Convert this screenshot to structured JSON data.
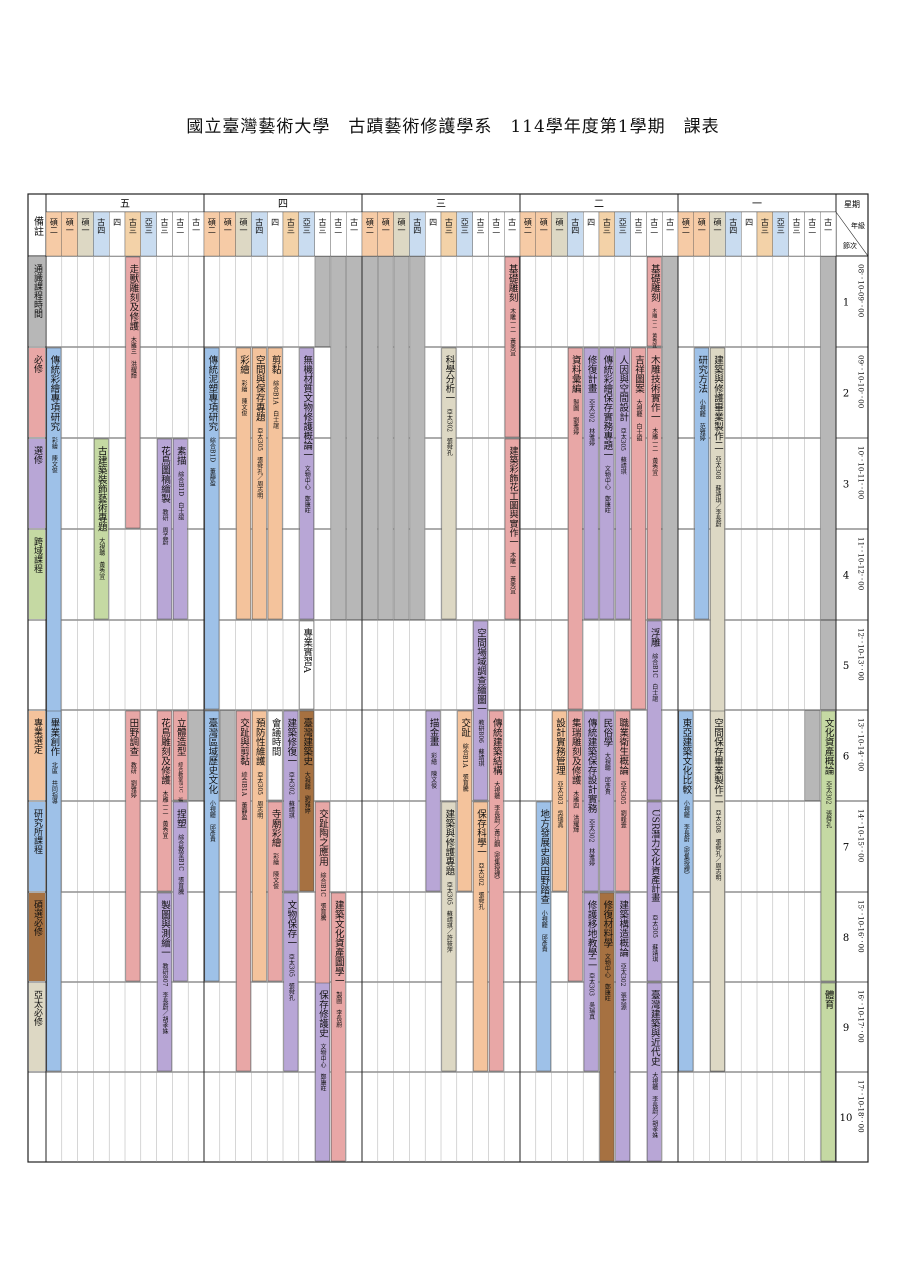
{
  "title": "國立臺灣藝術大學　古蹟藝術修護學系　114學年度第1學期　課表",
  "labels": {
    "note_header": "備註",
    "weekday_header": "星期",
    "grade_header": "年級",
    "period_header": "節次"
  },
  "days": [
    "五",
    "四",
    "三",
    "二",
    "一"
  ],
  "columns": [
    "碩二",
    "碩一",
    "碩一",
    "古四",
    "四",
    "古三",
    "亞三",
    "古三",
    "古二",
    "古一"
  ],
  "periods": [
    {
      "n": "1",
      "time": "08：10-09：00"
    },
    {
      "n": "2",
      "time": "09：10-10：00"
    },
    {
      "n": "3",
      "time": "10：10-11：00"
    },
    {
      "n": "4",
      "time": "11：10-12：00"
    },
    {
      "n": "5",
      "time": "12：10-13：00"
    },
    {
      "n": "6",
      "time": "13：10-14：00"
    },
    {
      "n": "7",
      "time": "14：10-15：00"
    },
    {
      "n": "8",
      "time": "15：10-16：00"
    },
    {
      "n": "9",
      "time": "16：10-17：00"
    },
    {
      "n": "10",
      "time": "17：10-18：00"
    }
  ],
  "legend": [
    {
      "label": "通識課程時間",
      "color": "#b7b7b7"
    },
    {
      "label": "必修",
      "color": "#e8a7a6"
    },
    {
      "label": "選修",
      "color": "#b8a6d6"
    },
    {
      "label": "跨域課程",
      "color": "#c5d9a3"
    },
    {
      "label": "專業選定",
      "color": "#f4c39c"
    },
    {
      "label": "研究所課程",
      "color": "#9ec1e8"
    },
    {
      "label": "碩選必修",
      "color": "#a67141"
    },
    {
      "label": "亞太必修",
      "color": "#ddd8c4"
    }
  ],
  "colors": {
    "gray": "#b7b7b7",
    "pink": "#e8a7a6",
    "purple": "#b8a6d6",
    "green": "#c5d9a3",
    "peach": "#f4c39c",
    "blue": "#9ec1e8",
    "brown": "#a67141",
    "beige": "#ddd8c4",
    "master": "#f6cba6",
    "g4": "#c9dcf0",
    "plain": "#ffffff"
  },
  "courses": [
    {
      "d": 0,
      "c": 0,
      "p": 2,
      "s": 6,
      "color": "blue",
      "title": "傳統彩繪專項研究",
      "info": "彩繪　陳文俊"
    },
    {
      "d": 0,
      "c": 0,
      "p": 6,
      "s": 4,
      "color": "blue",
      "title": "畢業創作",
      "info": "北區　共同指導"
    },
    {
      "d": 0,
      "c": 3,
      "p": 3,
      "s": 2,
      "color": "green",
      "title": "古建築裝飾藝術專題",
      "info": "大視聽　黃秀宜"
    },
    {
      "d": 0,
      "c": 5,
      "p": 1,
      "s": 3,
      "color": "pink",
      "title": "走獸雕刻及修護",
      "info": "木雕三　洪耀輝"
    },
    {
      "d": 0,
      "c": 5,
      "p": 6,
      "s": 3,
      "color": "pink",
      "title": "田野調查",
      "info": "教研　劉雅婷"
    },
    {
      "d": 0,
      "c": 7,
      "p": 3,
      "s": 2,
      "color": "purple",
      "title": "花鳥圖稿繪製",
      "info": "教研　周孟蔚"
    },
    {
      "d": 0,
      "c": 7,
      "p": 6,
      "s": 2,
      "color": "pink",
      "title": "花鳥雕刻及修護",
      "info": "木雕一二　黃秀宜"
    },
    {
      "d": 0,
      "c": 7,
      "p": 8,
      "s": 2,
      "color": "purple",
      "title": "製圖與測繪一",
      "info": "教研807　李長蔚／胡孝姝"
    },
    {
      "d": 0,
      "c": 8,
      "p": 3,
      "s": 2,
      "color": "purple",
      "title": "素描",
      "info": "綜合B1D　白士誼"
    },
    {
      "d": 0,
      "c": 8,
      "p": 6,
      "s": 1,
      "color": "pink",
      "title": "立體造型",
      "info": "綜合教室B1C　張育騰"
    },
    {
      "d": 0,
      "c": 8,
      "p": 7,
      "s": 2,
      "color": "purple",
      "title": "捏塑",
      "info": "綜合教室B1C　張育騰"
    },
    {
      "d": 1,
      "c": 0,
      "p": 2,
      "s": 4,
      "color": "blue",
      "title": "傳統泥塑專項研究",
      "info": "綜合B1D　董靜盈"
    },
    {
      "d": 1,
      "c": 0,
      "p": 6,
      "s": 3,
      "color": "blue",
      "title": "臺灣區域歷史文化",
      "info": "小視聽　邱彥貴"
    },
    {
      "d": 1,
      "c": 2,
      "p": 2,
      "s": 3,
      "color": "peach",
      "title": "彩繪",
      "info": "彩繪　陳文俊"
    },
    {
      "d": 1,
      "c": 2,
      "p": 6,
      "s": 4,
      "color": "pink",
      "title": "交趾與剪黏",
      "info": "綜合B1A　董靜盈"
    },
    {
      "d": 1,
      "c": 3,
      "p": 2,
      "s": 3,
      "color": "peach",
      "title": "空間與保存專題",
      "info": "亞太305　張舜孔／周志明"
    },
    {
      "d": 1,
      "c": 3,
      "p": 6,
      "s": 3,
      "color": "peach",
      "title": "預防性維護",
      "info": "亞太305　周志明"
    },
    {
      "d": 1,
      "c": 4,
      "p": 2,
      "s": 3,
      "color": "peach",
      "title": "剪黏",
      "info": "綜合B1A　白士誼"
    },
    {
      "d": 1,
      "c": 4,
      "p": 6,
      "s": 1,
      "color": "plain",
      "title": "會議時間",
      "info": ""
    },
    {
      "d": 1,
      "c": 4,
      "p": 7,
      "s": 2,
      "color": "pink",
      "title": "寺廟彩繪",
      "info": "彩繪　陳文俊"
    },
    {
      "d": 1,
      "c": 5,
      "p": 6,
      "s": 2,
      "color": "purple",
      "title": "建築修復一",
      "info": "亞太302　蘇靖琪"
    },
    {
      "d": 1,
      "c": 5,
      "p": 8,
      "s": 2,
      "color": "purple",
      "title": "文物保存一",
      "info": "亞太305　張舜孔"
    },
    {
      "d": 1,
      "c": 6,
      "p": 2,
      "s": 3,
      "color": "purple",
      "title": "無機材質文物修護概論一",
      "info": "文物中心　鄭康旺"
    },
    {
      "d": 1,
      "c": 6,
      "p": 5,
      "s": 1,
      "color": "plain",
      "title": "專業實習A",
      "info": ""
    },
    {
      "d": 1,
      "c": 6,
      "p": 6,
      "s": 2,
      "color": "brown",
      "title": "臺灣建築史",
      "info": "大視聽　劉雅婷"
    },
    {
      "d": 1,
      "c": 7,
      "p": 7,
      "s": 3,
      "color": "pink",
      "title": "交趾陶之應用",
      "info": "綜合B1C　張育騰"
    },
    {
      "d": 1,
      "c": 7,
      "p": 9,
      "s": 2,
      "color": "purple",
      "title": "保存修護史",
      "info": "文物中心　鄭康旺"
    },
    {
      "d": 1,
      "c": 8,
      "p": 8,
      "s": 3,
      "color": "pink",
      "title": "建築文化資產圖學一",
      "info": "製圖　李長蔚"
    },
    {
      "d": 2,
      "c": 4,
      "p": 6,
      "s": 2,
      "color": "purple",
      "title": "描金畫",
      "info": "彩繪　陳文俊"
    },
    {
      "d": 2,
      "c": 5,
      "p": 7,
      "s": 3,
      "color": "beige",
      "title": "建築與修護專題",
      "info": "亞太305　蘇靖琪／許筱萍"
    },
    {
      "d": 2,
      "c": 5,
      "p": 2,
      "s": 3,
      "color": "beige",
      "title": "科學分析一",
      "info": "亞太302　張舜孔"
    },
    {
      "d": 2,
      "c": 6,
      "p": 6,
      "s": 2,
      "color": "peach",
      "title": "交趾",
      "info": "綜合B1A　張育騰"
    },
    {
      "d": 2,
      "c": 7,
      "p": 5,
      "s": 2,
      "color": "purple",
      "title": "空間場域調查繪圖一",
      "info": "教研806　蘇靖琪"
    },
    {
      "d": 2,
      "c": 7,
      "p": 7,
      "s": 3,
      "color": "peach",
      "title": "保存科學一",
      "info": "亞太302　張舜孔"
    },
    {
      "d": 2,
      "c": 8,
      "p": 6,
      "s": 4,
      "color": "pink",
      "title": "傳統建築結構",
      "info": "大視聽　李長蔚／黃江麒（密集授課）"
    },
    {
      "d": 2,
      "c": 9,
      "p": 1,
      "s": 2,
      "color": "pink",
      "title": "基礎雕刻",
      "info": "木雕一二　黃秀宜"
    },
    {
      "d": 2,
      "c": 9,
      "p": 3,
      "s": 2,
      "color": "pink",
      "title": "建築彩飾花工圖與實作一",
      "info": "木雕一　黃秀宜"
    },
    {
      "d": 3,
      "c": 1,
      "p": 7,
      "s": 3,
      "color": "blue",
      "title": "地方發展史與田野踏查",
      "info": "小視聽　邱彥貴"
    },
    {
      "d": 3,
      "c": 2,
      "p": 6,
      "s": 2,
      "color": "peach",
      "title": "設計實務管理",
      "info": "亞太303　吳瑞真"
    },
    {
      "d": 3,
      "c": 3,
      "p": 2,
      "s": 4,
      "color": "pink",
      "title": "資料彙編",
      "info": "製圖　劉雅婷"
    },
    {
      "d": 3,
      "c": 3,
      "p": 6,
      "s": 3,
      "color": "pink",
      "title": "集瑞雕刻及修護",
      "info": "木雕四　洪耀輝"
    },
    {
      "d": 3,
      "c": 4,
      "p": 2,
      "s": 3,
      "color": "purple",
      "title": "修復計畫",
      "info": "亞太302　林雅婷"
    },
    {
      "d": 3,
      "c": 4,
      "p": 6,
      "s": 2,
      "color": "purple",
      "title": "傳統建築保存設計實務",
      "info": "亞太302　林雅婷"
    },
    {
      "d": 3,
      "c": 4,
      "p": 8,
      "s": 2,
      "color": "purple",
      "title": "修護移地教學二",
      "info": "亞太303　吳瑞真"
    },
    {
      "d": 3,
      "c": 5,
      "p": 2,
      "s": 3,
      "color": "purple",
      "title": "傳統彩繪保存實務專題一",
      "info": "文物中心　鄭康旺"
    },
    {
      "d": 3,
      "c": 5,
      "p": 6,
      "s": 2,
      "color": "purple",
      "title": "民俗學",
      "info": "大視聽　邱彥貴"
    },
    {
      "d": 3,
      "c": 5,
      "p": 8,
      "s": 3,
      "color": "brown",
      "title": "修復材料學",
      "info": "文物中心　鄭康旺"
    },
    {
      "d": 3,
      "c": 6,
      "p": 2,
      "s": 3,
      "color": "purple",
      "title": "人因與空間設計",
      "info": "亞太305　蘇靖琪"
    },
    {
      "d": 3,
      "c": 6,
      "p": 6,
      "s": 2,
      "color": "pink",
      "title": "職業衛生概論",
      "info": "亞太305　劉峰壹"
    },
    {
      "d": 3,
      "c": 6,
      "p": 8,
      "s": 3,
      "color": "purple",
      "title": "建築構造概論",
      "info": "亞太302　張志源"
    },
    {
      "d": 3,
      "c": 7,
      "p": 2,
      "s": 4,
      "color": "pink",
      "title": "吉祥圖案",
      "info": "大視聽　白士誼"
    },
    {
      "d": 3,
      "c": 8,
      "p": 1,
      "s": 1,
      "color": "pink",
      "title": "基礎雕刻",
      "info": "木雕一二　黃秀宜"
    },
    {
      "d": 3,
      "c": 8,
      "p": 2,
      "s": 3,
      "color": "pink",
      "title": "木雕技術實作一",
      "info": "木雕一二　黃秀宜"
    },
    {
      "d": 3,
      "c": 8,
      "p": 5,
      "s": 2,
      "color": "purple",
      "title": "浮雕",
      "info": "綜合B1C　白士誼"
    },
    {
      "d": 3,
      "c": 8,
      "p": 7,
      "s": 2,
      "color": "purple",
      "title": "USR潛力文化資產計畫",
      "info": "亞太305　蘇靖琪"
    },
    {
      "d": 3,
      "c": 8,
      "p": 9,
      "s": 2,
      "color": "purple",
      "title": "臺灣建築與近代史",
      "info": "大視聽　李長蔚／胡孝姝"
    },
    {
      "d": 4,
      "c": 0,
      "p": 6,
      "s": 4,
      "color": "blue",
      "title": "東亞建築文化比較",
      "info": "小視聽　李長蔚（密集授課）"
    },
    {
      "d": 4,
      "c": 1,
      "p": 2,
      "s": 3,
      "color": "blue",
      "title": "研究方法",
      "info": "小視聽　范雅婷"
    },
    {
      "d": 4,
      "c": 2,
      "p": 2,
      "s": 8,
      "color": "beige",
      "title": "建築與修護畢業製作二",
      "info": "亞太308　蘇靖琪／李長蔚"
    },
    {
      "d": 4,
      "c": 2,
      "p": 6,
      "s": 4,
      "color": "beige",
      "title": "空間保存畢業製作二",
      "info": "亞太308　張舜孔／周志明"
    },
    {
      "d": 4,
      "c": 9,
      "p": 6,
      "s": 3,
      "color": "green",
      "title": "文化資產概論",
      "info": "亞太302　張舜孔"
    },
    {
      "d": 4,
      "c": 9,
      "p": 9,
      "s": 2,
      "color": "green",
      "title": "體育",
      "info": ""
    }
  ],
  "gray_blocks": [
    {
      "d": 4,
      "c": 9,
      "p": 1,
      "s": 4
    },
    {
      "d": 3,
      "c": 9,
      "p": 1,
      "s": 4
    },
    {
      "d": 2,
      "c": 0,
      "p": 1,
      "s": 4
    },
    {
      "d": 2,
      "c": 1,
      "p": 1,
      "s": 4
    },
    {
      "d": 2,
      "c": 2,
      "p": 1,
      "s": 4
    },
    {
      "d": 2,
      "c": 3,
      "p": 1,
      "s": 4
    },
    {
      "d": 1,
      "c": 7,
      "p": 1,
      "s": 1
    },
    {
      "d": 1,
      "c": 8,
      "p": 1,
      "s": 4
    },
    {
      "d": 1,
      "c": 9,
      "p": 1,
      "s": 4
    },
    {
      "d": 1,
      "c": 0,
      "p": 6,
      "s": 1
    },
    {
      "d": 1,
      "c": 1,
      "p": 6,
      "s": 1
    },
    {
      "d": 0,
      "c": 9,
      "p": 6,
      "s": 1
    },
    {
      "d": 4,
      "c": 9,
      "p": 5,
      "s": 1
    },
    {
      "d": 4,
      "c": 8,
      "p": 6,
      "s": 1
    }
  ]
}
